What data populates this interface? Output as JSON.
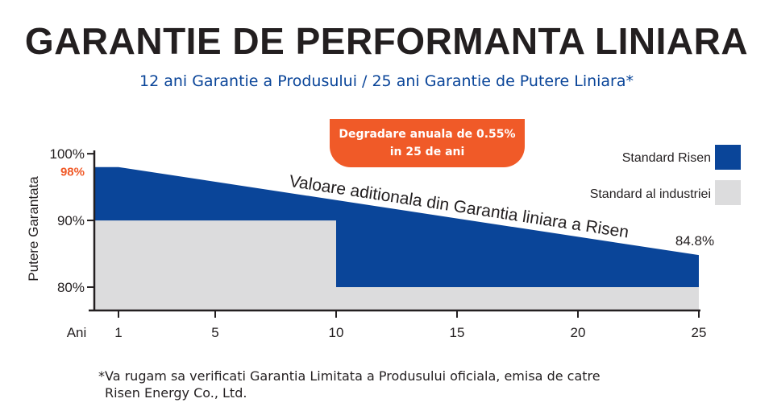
{
  "title": "GARANTIE DE PERFORMANTA LINIARA",
  "subtitle": "12 ani Garantie a Produsului / 25 ani Garantie de Putere Liniara*",
  "badge": {
    "line1": "Degradare anuala de 0.55%",
    "line2": "in 25 de ani",
    "color": "#f05a28"
  },
  "footnote": {
    "line1": "*Va rugam sa verificati Garantia Limitata a Produsului oficiala, emisa de catre",
    "line2": "Risen Energy Co., Ltd."
  },
  "chart_data": {
    "type": "area",
    "xlabel": "Ani",
    "ylabel": "Putere Garantata",
    "x_ticks": [
      1,
      5,
      10,
      15,
      20,
      25
    ],
    "x_tick_labels": [
      "1",
      "5",
      "10",
      "15",
      "20",
      "25"
    ],
    "xlim": [
      0,
      25
    ],
    "y_ticks": [
      {
        "value": 100,
        "label": "100%"
      },
      {
        "value": 98,
        "label": "98%",
        "highlight": true
      },
      {
        "value": 90,
        "label": "90%"
      },
      {
        "value": 80,
        "label": "80%"
      }
    ],
    "ylim": [
      76.5,
      100.5
    ],
    "series": [
      {
        "name": "Standard Risen",
        "color": "#0a4599",
        "points": [
          [
            0,
            98
          ],
          [
            1,
            98
          ],
          [
            25,
            84.8
          ]
        ]
      },
      {
        "name": "Standard al industriei",
        "color": "#dcdcdd",
        "points": [
          [
            0,
            90
          ],
          [
            10,
            90
          ],
          [
            10,
            80
          ],
          [
            25,
            80
          ]
        ]
      }
    ],
    "annotations": [
      {
        "text": "Valoare aditionala din Garantia liniara a Risen"
      },
      {
        "text": "84.8%"
      }
    ],
    "legend_position": "right"
  }
}
